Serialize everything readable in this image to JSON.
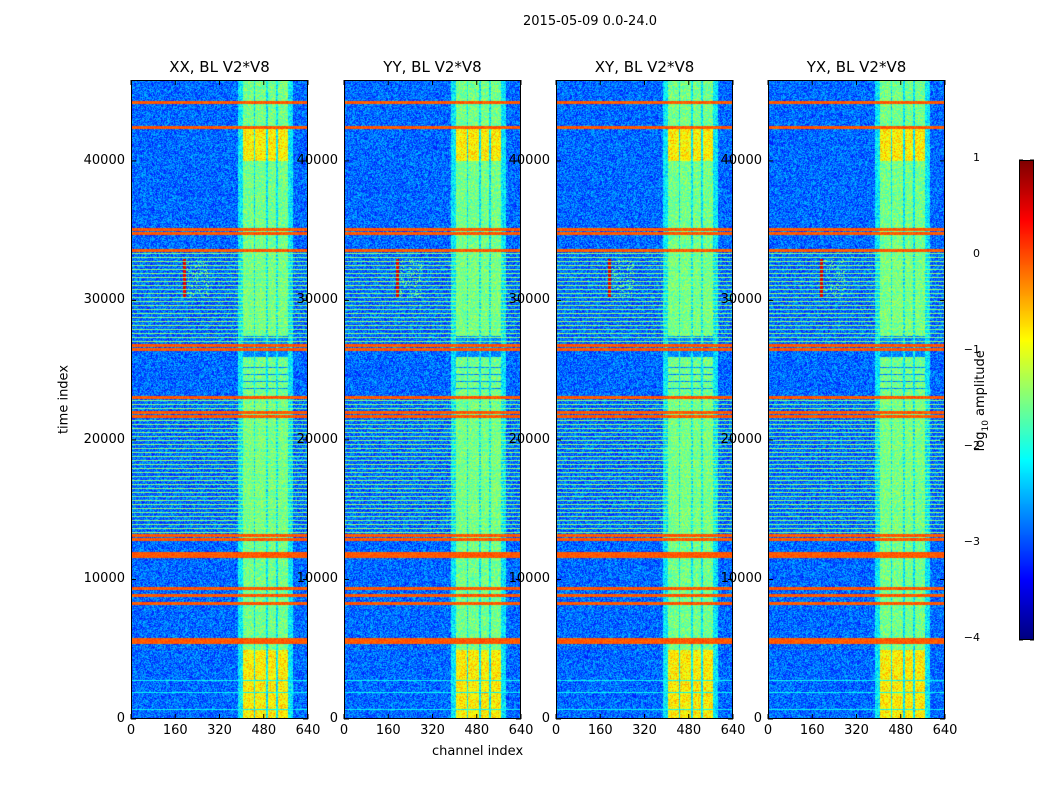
{
  "chart_data": {
    "type": "heatmap",
    "suptitle": "2015-05-09 0.0-24.0",
    "xlabel": "channel index",
    "ylabel": "time index",
    "xlim": [
      0,
      640
    ],
    "ylim": [
      0,
      45800
    ],
    "x_ticks": [
      0,
      160,
      320,
      480,
      640
    ],
    "y_ticks": [
      0,
      10000,
      20000,
      30000,
      40000
    ],
    "colorbar": {
      "label": "log10 amplitude",
      "range": [
        -4,
        1
      ],
      "ticks": [
        -4,
        -3,
        -2,
        -1,
        0,
        1
      ],
      "tick_labels": [
        "−4",
        "−3",
        "−2",
        "−1",
        "0",
        "1"
      ],
      "colormap": "jet"
    },
    "panels": [
      {
        "title": "XX, BL V2*V8",
        "rfi_channel": 190
      },
      {
        "title": "YY, BL V2*V8",
        "rfi_channel": 190
      },
      {
        "title": "XY, BL V2*V8",
        "rfi_channel": 190
      },
      {
        "title": "YX, BL V2*V8",
        "rfi_channel": 190
      }
    ],
    "band_channels": [
      [
        405,
        440
      ],
      [
        450,
        485
      ],
      [
        495,
        520
      ],
      [
        530,
        565
      ]
    ],
    "flag_rows_time": [
      44200,
      42400,
      35100,
      34800,
      33600,
      26800,
      26500,
      23100,
      22000,
      21700,
      13200,
      12900,
      11900,
      11700,
      9400,
      8900,
      8300,
      5700,
      5500
    ],
    "weak_rows_time": [
      2800,
      1900,
      700
    ]
  }
}
